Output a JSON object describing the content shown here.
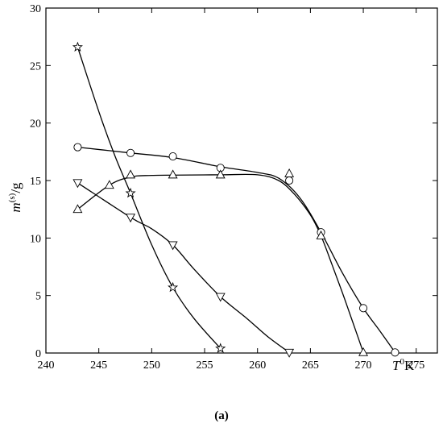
{
  "chart_data": {
    "type": "scatter",
    "xlim": [
      240,
      277
    ],
    "ylim": [
      0,
      30
    ],
    "x_ticks": [
      240,
      245,
      250,
      255,
      260,
      265,
      270,
      275
    ],
    "y_ticks": [
      0,
      5,
      10,
      15,
      20,
      25,
      30
    ],
    "xlabel": {
      "main": "T",
      "sup": "0",
      "unit": "K"
    },
    "ylabel": {
      "main": "m",
      "sup": "(s)",
      "unit": "/g"
    },
    "grid": false,
    "legend": "none",
    "series": [
      {
        "marker": "circle",
        "points": [
          [
            243,
            17.9
          ],
          [
            248,
            17.4
          ],
          [
            252,
            17.1
          ],
          [
            256.5,
            16.1
          ],
          [
            263,
            15.0
          ],
          [
            266,
            10.5
          ],
          [
            270,
            3.9
          ],
          [
            273,
            0.05
          ]
        ],
        "curve": [
          [
            243,
            17.9
          ],
          [
            248,
            17.4
          ],
          [
            252,
            17.0
          ],
          [
            256.5,
            16.2
          ],
          [
            260,
            15.7
          ],
          [
            262,
            15.2
          ],
          [
            264,
            13.5
          ],
          [
            266,
            10.5
          ],
          [
            268,
            7.0
          ],
          [
            270,
            3.9
          ],
          [
            271.5,
            2.0
          ],
          [
            273,
            0.05
          ]
        ]
      },
      {
        "marker": "triangle-up",
        "points": [
          [
            243,
            12.5
          ],
          [
            246,
            14.6
          ],
          [
            248,
            15.5
          ],
          [
            252,
            15.5
          ],
          [
            256.5,
            15.5
          ],
          [
            263,
            15.6
          ],
          [
            266,
            10.2
          ],
          [
            270,
            0.05
          ]
        ],
        "curve": [
          [
            243,
            12.5
          ],
          [
            246,
            14.6
          ],
          [
            248,
            15.3
          ],
          [
            250,
            15.45
          ],
          [
            256.5,
            15.5
          ],
          [
            260,
            15.5
          ],
          [
            262,
            15.0
          ],
          [
            263.5,
            13.8
          ],
          [
            265,
            12.0
          ],
          [
            266,
            10.2
          ],
          [
            267,
            7.8
          ],
          [
            268,
            5.3
          ],
          [
            269,
            2.7
          ],
          [
            270,
            0.05
          ]
        ]
      },
      {
        "marker": "triangle-down",
        "points": [
          [
            243,
            14.8
          ],
          [
            248,
            11.8
          ],
          [
            252,
            9.4
          ],
          [
            256.5,
            4.9
          ],
          [
            263,
            0.05
          ]
        ],
        "curve": [
          [
            243,
            14.8
          ],
          [
            248,
            11.8
          ],
          [
            250,
            10.8
          ],
          [
            252,
            9.4
          ],
          [
            254,
            7.3
          ],
          [
            256.5,
            4.9
          ],
          [
            259,
            3.0
          ],
          [
            261,
            1.4
          ],
          [
            263,
            0.05
          ]
        ]
      },
      {
        "marker": "star",
        "points": [
          [
            243,
            26.6
          ],
          [
            248,
            13.9
          ],
          [
            252,
            5.7
          ],
          [
            256.5,
            0.4
          ]
        ],
        "curve": [
          [
            243,
            26.6
          ],
          [
            245,
            21.0
          ],
          [
            246.5,
            17.2
          ],
          [
            248,
            13.9
          ],
          [
            250,
            9.4
          ],
          [
            252,
            5.7
          ],
          [
            254,
            3.0
          ],
          [
            256.5,
            0.4
          ]
        ]
      }
    ]
  },
  "caption": "(a)"
}
